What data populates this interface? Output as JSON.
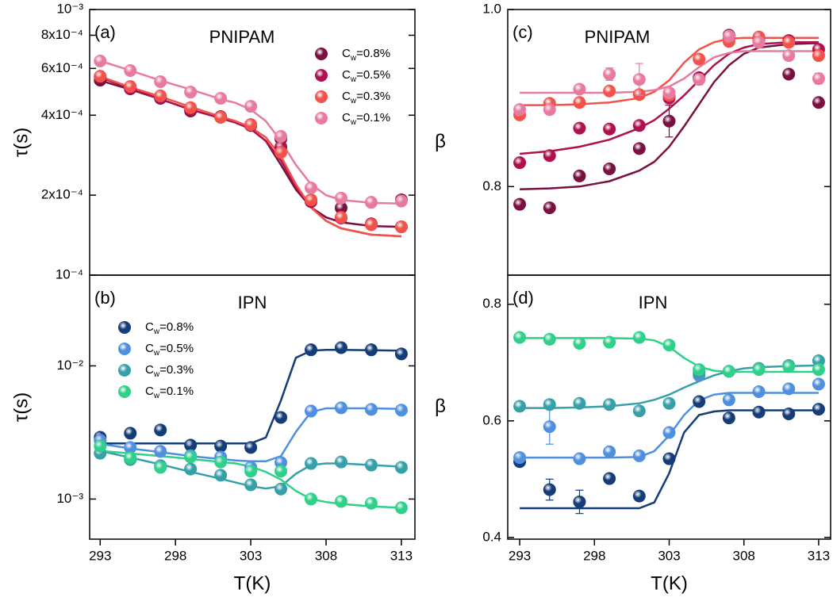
{
  "chart_data": [
    {
      "type": "scatter",
      "panel_label": "(a)",
      "title": "PNIPAM",
      "ylabel": "τ(s)",
      "log_y": true,
      "legend": "upper right",
      "x": [
        293,
        295,
        297,
        299,
        301,
        303,
        305,
        307,
        309,
        311,
        313
      ],
      "fit_x": [
        293,
        295,
        297,
        299,
        301,
        302,
        303,
        304,
        305,
        306,
        307,
        308,
        309,
        311,
        313
      ],
      "xlim": [
        292.3,
        313.9
      ],
      "ylim": [
        0.0001,
        0.001
      ],
      "yticks": [
        {
          "value": 0.001,
          "label": "10⁻³"
        },
        {
          "value": 0.0008,
          "label": "8x10⁻⁴"
        },
        {
          "value": 0.0006,
          "label": "6x10⁻⁴"
        },
        {
          "value": 0.0004,
          "label": "4x10⁻⁴"
        },
        {
          "value": 0.0002,
          "label": "2x10⁻⁴"
        },
        {
          "value": 0.0001,
          "label": "10⁻⁴"
        }
      ],
      "series": [
        {
          "name": "Cw=0.8%",
          "color": "#7a1040",
          "values": [
            0.000542,
            0.000503,
            0.000463,
            0.000415,
            0.000395,
            0.000366,
            0.000326,
            0.000192,
            0.000179,
            0.000155,
            0.000192
          ],
          "fit": [
            0.00054,
            0.0005,
            0.00046,
            0.00042,
            0.00039,
            0.000375,
            0.000355,
            0.00032,
            0.00026,
            0.00021,
            0.00018,
            0.000165,
            0.000158,
            0.000153,
            0.000152
          ]
        },
        {
          "name": "Cw=0.5%",
          "color": "#b0104e",
          "values": [
            0.000558,
            0.000506,
            0.000466,
            0.00042,
            0.000393,
            0.000366,
            0.000304,
            0.000189,
            0.000164,
            0.000156,
            0.000152
          ],
          "fit": [
            0.000555,
            0.000505,
            0.00046,
            0.00042,
            0.00039,
            0.000375,
            0.000355,
            0.00032,
            0.00027,
            0.000215,
            0.00018,
            0.00016,
            0.00015,
            0.000142,
            0.00014
          ]
        },
        {
          "name": "Cw=0.3%",
          "color": "#f2524a",
          "values": [
            0.000561,
            0.000513,
            0.000473,
            0.000427,
            0.000393,
            0.000369,
            0.00029,
            0.000192,
            0.000165,
            0.000155,
            0.000152
          ],
          "fit": [
            0.00056,
            0.00051,
            0.00047,
            0.00043,
            0.000395,
            0.00038,
            0.00036,
            0.00033,
            0.00028,
            0.00022,
            0.00018,
            0.00016,
            0.00015,
            0.000142,
            0.00014
          ]
        },
        {
          "name": "Cw=0.1%",
          "color": "#e87aa0",
          "values": [
            0.00064,
            0.000589,
            0.000535,
            0.000489,
            0.000463,
            0.000432,
            0.000333,
            0.000213,
            0.000195,
            0.000188,
            0.00019
          ],
          "fit": [
            0.00064,
            0.00059,
            0.00054,
            0.0005,
            0.00046,
            0.000445,
            0.00042,
            0.00038,
            0.00032,
            0.00026,
            0.00022,
            0.0002,
            0.000192,
            0.000187,
            0.000186
          ]
        }
      ]
    },
    {
      "type": "scatter",
      "panel_label": "(b)",
      "title": "IPN",
      "ylabel": "τ(s)",
      "xlabel": "T(K)",
      "log_y": true,
      "legend": "upper left",
      "x": [
        293,
        295,
        297,
        299,
        301,
        303,
        305,
        307,
        309,
        311,
        313
      ],
      "fit_x": [
        293,
        295,
        297,
        299,
        301,
        302,
        303,
        304,
        305,
        306,
        307,
        308,
        309,
        311,
        313
      ],
      "xlim": [
        292.3,
        313.9
      ],
      "xticks": [
        293,
        298,
        303,
        308,
        313
      ],
      "ylim": [
        0.0005,
        0.048
      ],
      "yticks": [
        {
          "value": 0.01,
          "label": "10⁻²"
        },
        {
          "value": 0.001,
          "label": "10⁻³"
        }
      ],
      "series": [
        {
          "name": "Cw=0.8%",
          "color": "#143c78",
          "values": [
            0.00291,
            0.00312,
            0.0033,
            0.00254,
            0.0025,
            0.00244,
            0.0041,
            0.0132,
            0.0137,
            0.0132,
            0.0123
          ],
          "fit": [
            0.00262,
            0.00262,
            0.00262,
            0.00262,
            0.00262,
            0.00262,
            0.00262,
            0.0029,
            0.0055,
            0.0115,
            0.013,
            0.0132,
            0.0132,
            0.0131,
            0.013
          ]
        },
        {
          "name": "Cw=0.5%",
          "color": "#4f8fe0",
          "values": [
            0.00276,
            0.00244,
            0.00228,
            0.00212,
            0.00207,
            0.00173,
            0.00188,
            0.00458,
            0.00484,
            0.00471,
            0.00465
          ],
          "fit": [
            0.0026,
            0.0024,
            0.00225,
            0.0021,
            0.002,
            0.00195,
            0.00192,
            0.00192,
            0.0021,
            0.0032,
            0.0045,
            0.0048,
            0.0048,
            0.0048,
            0.00475
          ]
        },
        {
          "name": "Cw=0.3%",
          "color": "#36a0a8",
          "values": [
            0.00221,
            0.00198,
            0.00178,
            0.00168,
            0.00151,
            0.00128,
            0.00119,
            0.00185,
            0.0019,
            0.0018,
            0.00173
          ],
          "fit": [
            0.0023,
            0.00205,
            0.00182,
            0.0016,
            0.00142,
            0.00133,
            0.00125,
            0.0012,
            0.00125,
            0.00155,
            0.0018,
            0.00185,
            0.00185,
            0.0018,
            0.00175
          ]
        },
        {
          "name": "Cw=0.1%",
          "color": "#2ed08a",
          "values": [
            0.0025,
            0.00204,
            0.00173,
            0.00207,
            0.0019,
            0.00162,
            0.00162,
            0.001,
            0.00096,
            0.00093,
            0.00086
          ],
          "fit": [
            0.0023,
            0.0022,
            0.0021,
            0.002,
            0.0019,
            0.00185,
            0.00175,
            0.0016,
            0.0014,
            0.00115,
            0.001,
            0.00095,
            0.00092,
            0.00088,
            0.00086
          ]
        }
      ]
    },
    {
      "type": "scatter",
      "panel_label": "(c)",
      "title": "PNIPAM",
      "ylabel": "β",
      "x": [
        293,
        295,
        297,
        299,
        301,
        303,
        305,
        307,
        309,
        311,
        313
      ],
      "fit_x": [
        293,
        295,
        297,
        299,
        301,
        302,
        303,
        304,
        305,
        306,
        307,
        308,
        309,
        311,
        313
      ],
      "xlim": [
        292.2,
        313.8
      ],
      "ylim": [
        0.7,
        1.0
      ],
      "yticks": [
        {
          "value": 1.0,
          "label": "1.0"
        },
        0.8
      ],
      "series": [
        {
          "color": "#7a1040",
          "values": [
            0.78,
            0.776,
            0.812,
            0.82,
            0.843,
            0.874,
            0.923,
            0.971,
            0.967,
            0.927,
            0.895
          ],
          "errors": [
            0.005,
            0.004,
            0.005,
            0.004,
            null,
            0.018,
            null,
            null,
            null,
            null,
            0.003
          ],
          "fit": [
            0.797,
            0.798,
            0.8,
            0.806,
            0.818,
            0.828,
            0.845,
            0.868,
            0.893,
            0.918,
            0.937,
            0.95,
            0.957,
            0.961,
            0.962
          ]
        },
        {
          "color": "#b0104e",
          "values": [
            0.827,
            0.835,
            0.866,
            0.865,
            0.869,
            0.9,
            0.922,
            0.968,
            0.964,
            0.965,
            0.955
          ],
          "fit": [
            0.837,
            0.84,
            0.845,
            0.853,
            0.866,
            0.875,
            0.888,
            0.903,
            0.92,
            0.937,
            0.95,
            0.957,
            0.961,
            0.963,
            0.963
          ]
        },
        {
          "color": "#f2524a",
          "values": [
            0.881,
            0.894,
            0.895,
            0.908,
            0.904,
            0.903,
            0.944,
            0.964,
            0.969,
            0.963,
            0.948
          ],
          "fit": [
            0.892,
            0.892,
            0.893,
            0.895,
            0.9,
            0.907,
            0.92,
            0.94,
            0.955,
            0.963,
            0.967,
            0.968,
            0.968,
            0.968,
            0.968
          ]
        },
        {
          "color": "#e87aa0",
          "values": [
            0.887,
            0.887,
            0.91,
            0.927,
            0.921,
            0.906,
            0.921,
            0.97,
            0.963,
            0.948,
            0.922
          ],
          "errors": [
            null,
            0.005,
            0.004,
            0.007,
            0.018,
            null,
            0.006,
            null,
            null,
            null,
            0.006
          ],
          "fit": [
            0.906,
            0.906,
            0.906,
            0.906,
            0.907,
            0.909,
            0.913,
            0.922,
            0.935,
            0.946,
            0.951,
            0.953,
            0.953,
            0.953,
            0.953
          ]
        }
      ]
    },
    {
      "type": "scatter",
      "panel_label": "(d)",
      "title": "IPN",
      "ylabel": "β",
      "xlabel": "T(K)",
      "x": [
        293,
        295,
        297,
        299,
        301,
        303,
        305,
        307,
        309,
        311,
        313
      ],
      "fit_x": [
        293,
        295,
        297,
        299,
        301,
        302,
        303,
        304,
        305,
        306,
        307,
        308,
        309,
        311,
        313
      ],
      "xlim": [
        292.2,
        313.8
      ],
      "xticks": [
        293,
        298,
        303,
        308,
        313
      ],
      "ylim": [
        0.397,
        0.85
      ],
      "yticks": [
        0.8,
        0.6,
        0.4
      ],
      "series": [
        {
          "color": "#143c78",
          "values": [
            0.53,
            0.482,
            0.461,
            0.501,
            0.471,
            0.535,
            0.633,
            0.605,
            0.615,
            0.612,
            0.62
          ],
          "errors": [
            null,
            0.018,
            0.02,
            0.008,
            null,
            null,
            null,
            null,
            null,
            null,
            null
          ],
          "fit": [
            0.45,
            0.45,
            0.45,
            0.45,
            0.45,
            0.46,
            0.51,
            0.58,
            0.61,
            0.616,
            0.618,
            0.618,
            0.618,
            0.618,
            0.618
          ]
        },
        {
          "color": "#4f8fe0",
          "values": [
            0.537,
            0.59,
            0.535,
            0.547,
            0.54,
            0.58,
            0.678,
            0.636,
            0.65,
            0.655,
            0.663
          ],
          "errors": [
            0.008,
            0.03,
            null,
            null,
            null,
            null,
            null,
            null,
            null,
            null,
            null
          ],
          "fit": [
            0.537,
            0.537,
            0.537,
            0.537,
            0.538,
            0.548,
            0.575,
            0.61,
            0.635,
            0.645,
            0.648,
            0.648,
            0.648,
            0.648,
            0.648
          ]
        },
        {
          "color": "#36a0a8",
          "values": [
            0.625,
            0.628,
            0.63,
            0.628,
            0.617,
            0.63,
            0.683,
            0.685,
            0.69,
            0.695,
            0.703
          ],
          "fit": [
            0.622,
            0.622,
            0.623,
            0.625,
            0.63,
            0.636,
            0.645,
            0.657,
            0.668,
            0.678,
            0.685,
            0.69,
            0.692,
            0.694,
            0.695
          ]
        },
        {
          "color": "#2ed08a",
          "values": [
            0.743,
            0.74,
            0.733,
            0.735,
            0.743,
            0.73,
            0.688,
            0.685,
            0.688,
            0.693,
            0.688
          ],
          "fit": [
            0.742,
            0.742,
            0.742,
            0.742,
            0.741,
            0.738,
            0.727,
            0.708,
            0.693,
            0.686,
            0.684,
            0.684,
            0.684,
            0.684,
            0.684
          ]
        }
      ]
    }
  ]
}
